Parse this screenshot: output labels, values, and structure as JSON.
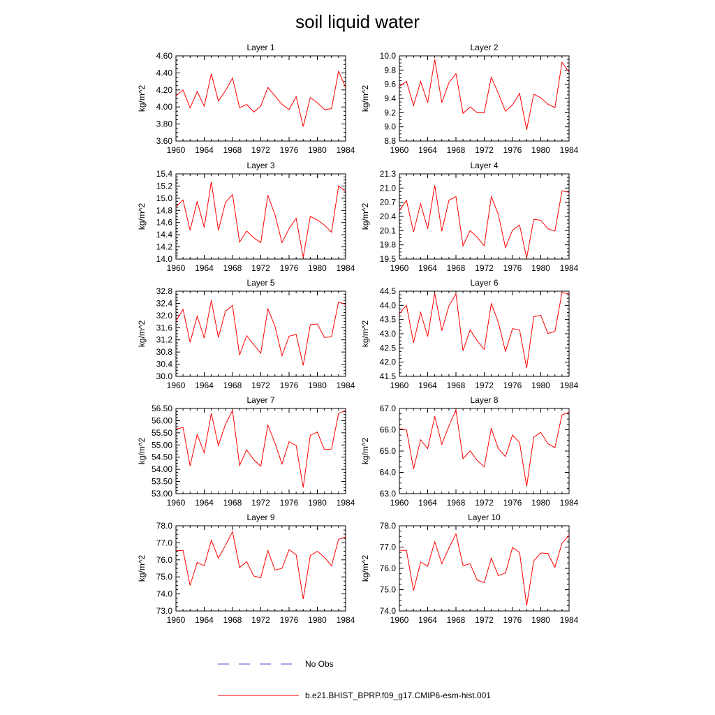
{
  "page": {
    "title": "soil liquid water"
  },
  "legend": {
    "items": [
      {
        "label": "No Obs",
        "color": "#4a4ad0",
        "dash": true
      },
      {
        "label": "b.e21.BHIST_BPRP.f09_g17.CMIP6-esm-hist.001",
        "color": "#ff0000",
        "dash": false
      }
    ]
  },
  "chart_data": [
    {
      "type": "line",
      "title": "Layer 1",
      "ylabel": "kg/m^2",
      "ylim": [
        3.6,
        4.6
      ],
      "yticks": [
        "3.60",
        "3.80",
        "4.00",
        "4.20",
        "4.40",
        "4.60"
      ],
      "xlim": [
        1960,
        1984
      ],
      "xticks": [
        "1960",
        "1964",
        "1968",
        "1972",
        "1976",
        "1980",
        "1984"
      ],
      "x": [
        1960,
        1961,
        1962,
        1963,
        1964,
        1965,
        1966,
        1967,
        1968,
        1969,
        1970,
        1971,
        1972,
        1973,
        1974,
        1975,
        1976,
        1977,
        1978,
        1979,
        1980,
        1981,
        1982,
        1983,
        1984
      ],
      "series": [
        {
          "color": "#ff0000",
          "values": [
            4.13,
            4.2,
            3.99,
            4.18,
            4.01,
            4.39,
            4.07,
            4.19,
            4.34,
            3.99,
            4.03,
            3.94,
            4.01,
            4.23,
            4.13,
            4.03,
            3.97,
            4.12,
            3.77,
            4.11,
            4.05,
            3.97,
            3.98,
            4.42,
            4.23
          ]
        }
      ]
    },
    {
      "type": "line",
      "title": "Layer 2",
      "ylabel": "kg/m^2",
      "ylim": [
        8.8,
        10.0
      ],
      "yticks": [
        "8.8",
        "9.0",
        "9.2",
        "9.4",
        "9.6",
        "9.8",
        "10.0"
      ],
      "xlim": [
        1960,
        1984
      ],
      "xticks": [
        "1960",
        "1964",
        "1968",
        "1972",
        "1976",
        "1980",
        "1984"
      ],
      "x": [
        1960,
        1961,
        1962,
        1963,
        1964,
        1965,
        1966,
        1967,
        1968,
        1969,
        1970,
        1971,
        1972,
        1973,
        1974,
        1975,
        1976,
        1977,
        1978,
        1979,
        1980,
        1981,
        1982,
        1983,
        1984
      ],
      "series": [
        {
          "color": "#ff0000",
          "values": [
            9.57,
            9.64,
            9.3,
            9.64,
            9.34,
            9.95,
            9.34,
            9.62,
            9.75,
            9.19,
            9.28,
            9.2,
            9.2,
            9.7,
            9.47,
            9.22,
            9.31,
            9.47,
            8.96,
            9.46,
            9.41,
            9.32,
            9.27,
            9.91,
            9.77
          ]
        }
      ]
    },
    {
      "type": "line",
      "title": "Layer 3",
      "ylabel": "kg/m^2",
      "ylim": [
        14.0,
        15.4
      ],
      "yticks": [
        "14.0",
        "14.2",
        "14.4",
        "14.6",
        "14.8",
        "15.0",
        "15.2",
        "15.4"
      ],
      "xlim": [
        1960,
        1984
      ],
      "xticks": [
        "1960",
        "1964",
        "1968",
        "1972",
        "1976",
        "1980",
        "1984"
      ],
      "x": [
        1960,
        1961,
        1962,
        1963,
        1964,
        1965,
        1966,
        1967,
        1968,
        1969,
        1970,
        1971,
        1972,
        1973,
        1974,
        1975,
        1976,
        1977,
        1978,
        1979,
        1980,
        1981,
        1982,
        1983,
        1984
      ],
      "series": [
        {
          "color": "#ff0000",
          "values": [
            14.86,
            14.97,
            14.47,
            14.95,
            14.52,
            15.27,
            14.47,
            14.93,
            15.06,
            14.28,
            14.46,
            14.35,
            14.27,
            15.05,
            14.73,
            14.27,
            14.5,
            14.67,
            14.03,
            14.7,
            14.64,
            14.56,
            14.44,
            15.2,
            15.11
          ]
        }
      ]
    },
    {
      "type": "line",
      "title": "Layer 4",
      "ylabel": "kg/m^2",
      "ylim": [
        19.5,
        21.3
      ],
      "yticks": [
        "19.5",
        "19.8",
        "20.1",
        "20.4",
        "20.7",
        "21.0",
        "21.3"
      ],
      "xlim": [
        1960,
        1984
      ],
      "xticks": [
        "1960",
        "1964",
        "1968",
        "1972",
        "1976",
        "1980",
        "1984"
      ],
      "x": [
        1960,
        1961,
        1962,
        1963,
        1964,
        1965,
        1966,
        1967,
        1968,
        1969,
        1970,
        1971,
        1972,
        1973,
        1974,
        1975,
        1976,
        1977,
        1978,
        1979,
        1980,
        1981,
        1982,
        1983,
        1984
      ],
      "series": [
        {
          "color": "#ff0000",
          "values": [
            20.53,
            20.74,
            20.07,
            20.67,
            20.14,
            21.06,
            20.09,
            20.74,
            20.82,
            19.78,
            20.1,
            19.96,
            19.78,
            20.82,
            20.44,
            19.74,
            20.11,
            20.22,
            19.52,
            20.34,
            20.32,
            20.14,
            20.09,
            20.94,
            20.91
          ]
        }
      ]
    },
    {
      "type": "line",
      "title": "Layer 5",
      "ylabel": "kg/m^2",
      "ylim": [
        30.0,
        32.8
      ],
      "yticks": [
        "30.0",
        "30.4",
        "30.8",
        "31.2",
        "31.6",
        "32.0",
        "32.4",
        "32.8"
      ],
      "xlim": [
        1960,
        1984
      ],
      "xticks": [
        "1960",
        "1964",
        "1968",
        "1972",
        "1976",
        "1980",
        "1984"
      ],
      "x": [
        1960,
        1961,
        1962,
        1963,
        1964,
        1965,
        1966,
        1967,
        1968,
        1969,
        1970,
        1971,
        1972,
        1973,
        1974,
        1975,
        1976,
        1977,
        1978,
        1979,
        1980,
        1981,
        1982,
        1983,
        1984
      ],
      "series": [
        {
          "color": "#ff0000",
          "values": [
            31.82,
            32.2,
            31.12,
            31.98,
            31.26,
            32.5,
            31.28,
            32.14,
            32.33,
            30.7,
            31.34,
            31.04,
            30.76,
            32.22,
            31.65,
            30.68,
            31.32,
            31.38,
            30.36,
            31.7,
            31.72,
            31.28,
            31.3,
            32.45,
            32.36
          ]
        }
      ]
    },
    {
      "type": "line",
      "title": "Layer 6",
      "ylabel": "kg/m^2",
      "ylim": [
        41.5,
        44.5
      ],
      "yticks": [
        "41.5",
        "42.0",
        "42.5",
        "43.0",
        "43.5",
        "44.0",
        "44.5"
      ],
      "xlim": [
        1960,
        1984
      ],
      "xticks": [
        "1960",
        "1964",
        "1968",
        "1972",
        "1976",
        "1980",
        "1984"
      ],
      "x": [
        1960,
        1961,
        1962,
        1963,
        1964,
        1965,
        1966,
        1967,
        1968,
        1969,
        1970,
        1971,
        1972,
        1973,
        1974,
        1975,
        1976,
        1977,
        1978,
        1979,
        1980,
        1981,
        1982,
        1983,
        1984
      ],
      "series": [
        {
          "color": "#ff0000",
          "values": [
            43.71,
            44.0,
            42.68,
            43.75,
            42.9,
            44.42,
            43.11,
            43.98,
            44.4,
            42.4,
            43.14,
            42.75,
            42.45,
            44.06,
            43.4,
            42.38,
            43.18,
            43.14,
            41.79,
            43.6,
            43.65,
            43.01,
            43.08,
            44.45,
            44.4
          ]
        }
      ]
    },
    {
      "type": "line",
      "title": "Layer 7",
      "ylabel": "kg/m^2",
      "ylim": [
        53.0,
        56.5
      ],
      "yticks": [
        "53.00",
        "53.50",
        "54.00",
        "54.50",
        "55.00",
        "55.50",
        "56.00",
        "56.50"
      ],
      "xlim": [
        1960,
        1984
      ],
      "xticks": [
        "1960",
        "1964",
        "1968",
        "1972",
        "1976",
        "1980",
        "1984"
      ],
      "x": [
        1960,
        1961,
        1962,
        1963,
        1964,
        1965,
        1966,
        1967,
        1968,
        1969,
        1970,
        1971,
        1972,
        1973,
        1974,
        1975,
        1976,
        1977,
        1978,
        1979,
        1980,
        1981,
        1982,
        1983,
        1984
      ],
      "series": [
        {
          "color": "#ff0000",
          "values": [
            55.65,
            55.72,
            54.14,
            55.43,
            54.68,
            56.3,
            54.98,
            55.85,
            56.42,
            54.16,
            54.8,
            54.39,
            54.13,
            55.82,
            55.08,
            54.22,
            55.13,
            54.98,
            53.25,
            55.4,
            55.53,
            54.81,
            54.83,
            56.3,
            56.42
          ]
        }
      ]
    },
    {
      "type": "line",
      "title": "Layer 8",
      "ylabel": "kg/m^2",
      "ylim": [
        63.0,
        67.0
      ],
      "yticks": [
        "63.0",
        "64.0",
        "65.0",
        "66.0",
        "67.0"
      ],
      "xlim": [
        1960,
        1984
      ],
      "xticks": [
        "1960",
        "1964",
        "1968",
        "1972",
        "1976",
        "1980",
        "1984"
      ],
      "x": [
        1960,
        1961,
        1962,
        1963,
        1964,
        1965,
        1966,
        1967,
        1968,
        1969,
        1970,
        1971,
        1972,
        1973,
        1974,
        1975,
        1976,
        1977,
        1978,
        1979,
        1980,
        1981,
        1982,
        1983,
        1984
      ],
      "series": [
        {
          "color": "#ff0000",
          "values": [
            66.05,
            66.0,
            64.16,
            65.53,
            65.11,
            66.63,
            65.31,
            66.18,
            66.92,
            64.64,
            65.01,
            64.56,
            64.26,
            66.06,
            65.11,
            64.74,
            65.75,
            65.4,
            63.34,
            65.65,
            65.88,
            65.35,
            65.16,
            66.7,
            66.82
          ]
        }
      ]
    },
    {
      "type": "line",
      "title": "Layer 9",
      "ylabel": "kg/m^2",
      "ylim": [
        73.0,
        78.0
      ],
      "yticks": [
        "73.0",
        "74.0",
        "75.0",
        "76.0",
        "77.0",
        "78.0"
      ],
      "xlim": [
        1960,
        1984
      ],
      "xticks": [
        "1960",
        "1964",
        "1968",
        "1972",
        "1976",
        "1980",
        "1984"
      ],
      "x": [
        1960,
        1961,
        1962,
        1963,
        1964,
        1965,
        1966,
        1967,
        1968,
        1969,
        1970,
        1971,
        1972,
        1973,
        1974,
        1975,
        1976,
        1977,
        1978,
        1979,
        1980,
        1981,
        1982,
        1983,
        1984
      ],
      "series": [
        {
          "color": "#ff0000",
          "values": [
            76.55,
            76.55,
            74.5,
            75.85,
            75.65,
            77.15,
            76.1,
            76.85,
            77.65,
            75.55,
            75.9,
            75.05,
            74.95,
            76.55,
            75.4,
            75.5,
            76.6,
            76.3,
            73.7,
            76.25,
            76.5,
            76.15,
            75.65,
            77.2,
            77.35
          ]
        }
      ]
    },
    {
      "type": "line",
      "title": "Layer 10",
      "ylabel": "kg/m^2",
      "ylim": [
        74.0,
        78.0
      ],
      "yticks": [
        "74.0",
        "75.0",
        "76.0",
        "77.0",
        "78.0"
      ],
      "xlim": [
        1960,
        1984
      ],
      "xticks": [
        "1960",
        "1964",
        "1968",
        "1972",
        "1976",
        "1980",
        "1984"
      ],
      "x": [
        1960,
        1961,
        1962,
        1963,
        1964,
        1965,
        1966,
        1967,
        1968,
        1969,
        1970,
        1971,
        1972,
        1973,
        1974,
        1975,
        1976,
        1977,
        1978,
        1979,
        1980,
        1981,
        1982,
        1983,
        1984
      ],
      "series": [
        {
          "color": "#ff0000",
          "values": [
            76.85,
            76.84,
            74.95,
            76.3,
            76.1,
            77.25,
            76.22,
            76.95,
            77.62,
            76.13,
            76.22,
            75.45,
            75.33,
            76.48,
            75.66,
            75.78,
            76.98,
            76.75,
            74.25,
            76.35,
            76.72,
            76.7,
            76.05,
            77.18,
            77.55
          ]
        }
      ]
    }
  ]
}
